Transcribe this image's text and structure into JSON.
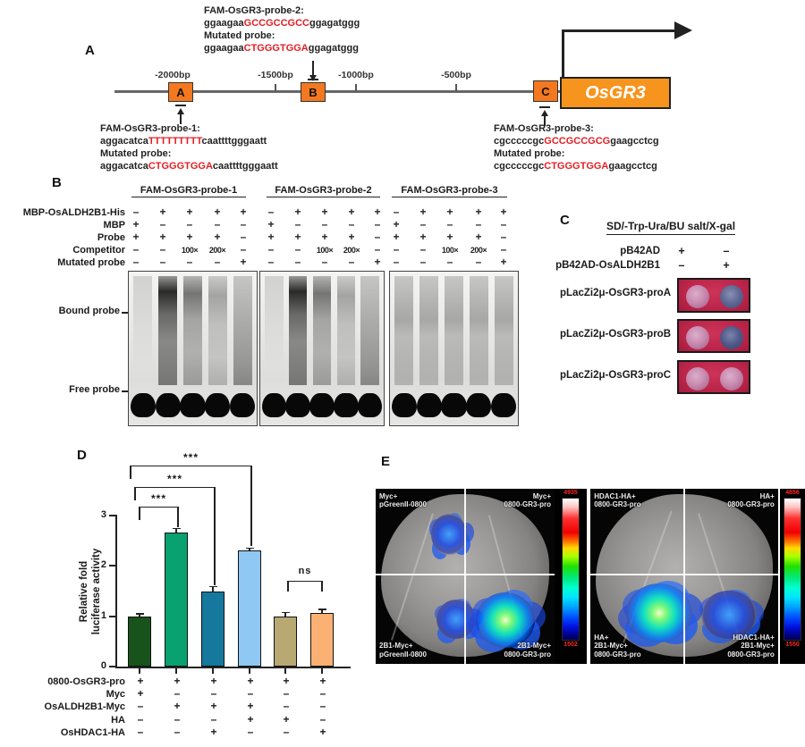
{
  "colors": {
    "accent_orange": "#F7941D",
    "sequence_red": "#E31E24",
    "plate_red": "#BB2549"
  },
  "panelA": {
    "label": "A",
    "ticks": [
      "-2000bp",
      "-1500bp",
      "-1000bp",
      "-500bp"
    ],
    "site_a": "A",
    "site_b": "B",
    "site_c": "C",
    "gene": "OsGR3",
    "probe2": {
      "title": "FAM-OsGR3-probe-2:",
      "pre": "ggaagaa",
      "motif": "GCCGCCGCC",
      "post": "ggagatggg",
      "mut_title": "Mutated probe:",
      "mut_pre": "ggaagaa",
      "mut_motif": "CTGGGTGGA",
      "mut_post": "ggagatggg"
    },
    "probe1": {
      "title": "FAM-OsGR3-probe-1:",
      "pre": "aggacatca",
      "motif": "TTTTTTTTT",
      "post": "caattttgggaatt",
      "mut_title": "Mutated probe:",
      "mut_pre": "aggacatca",
      "mut_motif": "CTGGGTGGA",
      "mut_post": "caattttgggaatt"
    },
    "probe3": {
      "title": "FAM-OsGR3-probe-3:",
      "pre": "cgcccccgc",
      "motif": "GCCGCCGCG",
      "post": "gaagcctcg",
      "mut_title": "Mutated probe:",
      "mut_pre": "cgcccccgc",
      "mut_motif": "CTGGGTGGA",
      "mut_post": "gaagcctcg"
    }
  },
  "panelB": {
    "label": "B",
    "headers": [
      "FAM-OsGR3-probe-1",
      "FAM-OsGR3-probe-2",
      "FAM-OsGR3-probe-3"
    ],
    "row_labels": [
      "MBP-OsALDH2B1-His",
      "MBP",
      "Probe",
      "Competitor",
      "Mutated probe"
    ],
    "grid": [
      [
        "–",
        "+",
        "+",
        "+",
        "+"
      ],
      [
        "+",
        "–",
        "–",
        "–",
        "–"
      ],
      [
        "+",
        "+",
        "+",
        "+",
        "–"
      ],
      [
        "–",
        "–",
        "100×",
        "200×",
        "–"
      ],
      [
        "–",
        "–",
        "–",
        "–",
        "+"
      ]
    ],
    "bound_label": "Bound probe",
    "free_label": "Free probe",
    "gels": [
      [
        "clean",
        "heavy",
        "mid",
        "lite",
        "mutfree"
      ],
      [
        "clean",
        "heavy",
        "mid",
        "lite",
        "mutfree"
      ],
      [
        "even",
        "even",
        "even",
        "even",
        "even"
      ]
    ]
  },
  "panelC": {
    "label": "C",
    "header": "SD/-Trp-Ura/BU salt/X-gal",
    "vectors": [
      {
        "label": "pB42AD",
        "cells": [
          "+",
          "–"
        ]
      },
      {
        "label": "pB42AD-OsALDH2B1",
        "cells": [
          "–",
          "+"
        ]
      }
    ],
    "plates": [
      {
        "label": "pLacZi2μ-OsGR3-proA",
        "colonies": [
          "pink",
          "blue"
        ]
      },
      {
        "label": "pLacZi2μ-OsGR3-proB",
        "colonies": [
          "pink",
          "blue-dark"
        ]
      },
      {
        "label": "pLacZi2μ-OsGR3-proC",
        "colonies": [
          "pink",
          "pink"
        ]
      }
    ]
  },
  "panelD": {
    "label": "D",
    "ylabel_line1": "Relative fold",
    "ylabel_line2": "luciferase activity",
    "yticks": [
      "0",
      "1",
      "2",
      "3"
    ],
    "bars": [
      {
        "value": 1.0,
        "err": 0.03,
        "color": "#17531B"
      },
      {
        "value": 2.66,
        "err": 0.07,
        "color": "#0AA170"
      },
      {
        "value": 1.5,
        "err": 0.08,
        "color": "#15789C"
      },
      {
        "value": 2.31,
        "err": 0.03,
        "color": "#8FC8F2"
      },
      {
        "value": 0.99,
        "err": 0.07,
        "color": "#B7A971"
      },
      {
        "value": 1.06,
        "err": 0.06,
        "color": "#FBB173"
      }
    ],
    "sig": [
      {
        "label": "***"
      },
      {
        "label": "***"
      },
      {
        "label": "***"
      },
      {
        "label": "ns"
      }
    ],
    "matrix": {
      "rows": [
        {
          "label": "0800-OsGR3-pro",
          "cells": [
            "+",
            "+",
            "+",
            "+",
            "+",
            "+"
          ]
        },
        {
          "label": "Myc",
          "cells": [
            "+",
            "–",
            "–",
            "–",
            "–",
            "–"
          ]
        },
        {
          "label": "OsALDH2B1-Myc",
          "cells": [
            "–",
            "+",
            "+",
            "+",
            "–",
            "–"
          ]
        },
        {
          "label": "HA",
          "cells": [
            "–",
            "–",
            "–",
            "+",
            "+",
            "–"
          ]
        },
        {
          "label": "OsHDAC1-HA",
          "cells": [
            "–",
            "–",
            "+",
            "–",
            "–",
            "+"
          ]
        }
      ]
    }
  },
  "panelE": {
    "label": "E",
    "leaves": [
      {
        "quadrants": [
          {
            "lines": [
              "Myc+",
              "pGreenII-0800"
            ]
          },
          {
            "lines": [
              "Myc+",
              "0800-GR3-pro"
            ]
          },
          {
            "lines": [
              "2B1-Myc+",
              "pGreenII-0800"
            ]
          },
          {
            "lines": [
              "2B1-Myc+",
              "0800-GR3-pro"
            ]
          }
        ],
        "scale": {
          "max": "4935",
          "min": "1502"
        }
      },
      {
        "quadrants": [
          {
            "lines": [
              "HDAC1-HA+",
              "0800-GR3-pro"
            ]
          },
          {
            "lines": [
              "HA+",
              "0800-GR3-pro"
            ]
          },
          {
            "lines": [
              "HA+",
              "2B1-Myc+",
              "0800-GR3-pro"
            ]
          },
          {
            "lines": [
              "HDAC1-HA+",
              "2B1-Myc+",
              "0800-GR3-pro"
            ]
          }
        ],
        "scale": {
          "max": "4856",
          "min": "1550"
        }
      }
    ]
  },
  "chart_data": {
    "type": "bar",
    "title": "",
    "xlabel": "",
    "ylabel": "Relative fold luciferase activity",
    "ylim": [
      0,
      3
    ],
    "yticks": [
      0,
      1,
      2,
      3
    ],
    "grid": false,
    "categories": [
      "Myc + 0800-OsGR3-pro",
      "OsALDH2B1-Myc + 0800-OsGR3-pro",
      "OsALDH2B1-Myc + OsHDAC1-HA + 0800-OsGR3-pro",
      "OsALDH2B1-Myc + HA + 0800-OsGR3-pro",
      "HA + 0800-OsGR3-pro",
      "OsHDAC1-HA + 0800-OsGR3-pro"
    ],
    "values": [
      1.0,
      2.66,
      1.5,
      2.31,
      0.99,
      1.06
    ],
    "errors": [
      0.03,
      0.07,
      0.08,
      0.03,
      0.07,
      0.06
    ],
    "bar_colors": [
      "#17531B",
      "#0AA170",
      "#15789C",
      "#8FC8F2",
      "#B7A971",
      "#FBB173"
    ],
    "significance": [
      {
        "from": 1,
        "to": 2,
        "label": "***"
      },
      {
        "from": 1,
        "to": 3,
        "label": "***"
      },
      {
        "from": 1,
        "to": 4,
        "label": "***"
      },
      {
        "from": 5,
        "to": 6,
        "label": "ns"
      }
    ]
  }
}
